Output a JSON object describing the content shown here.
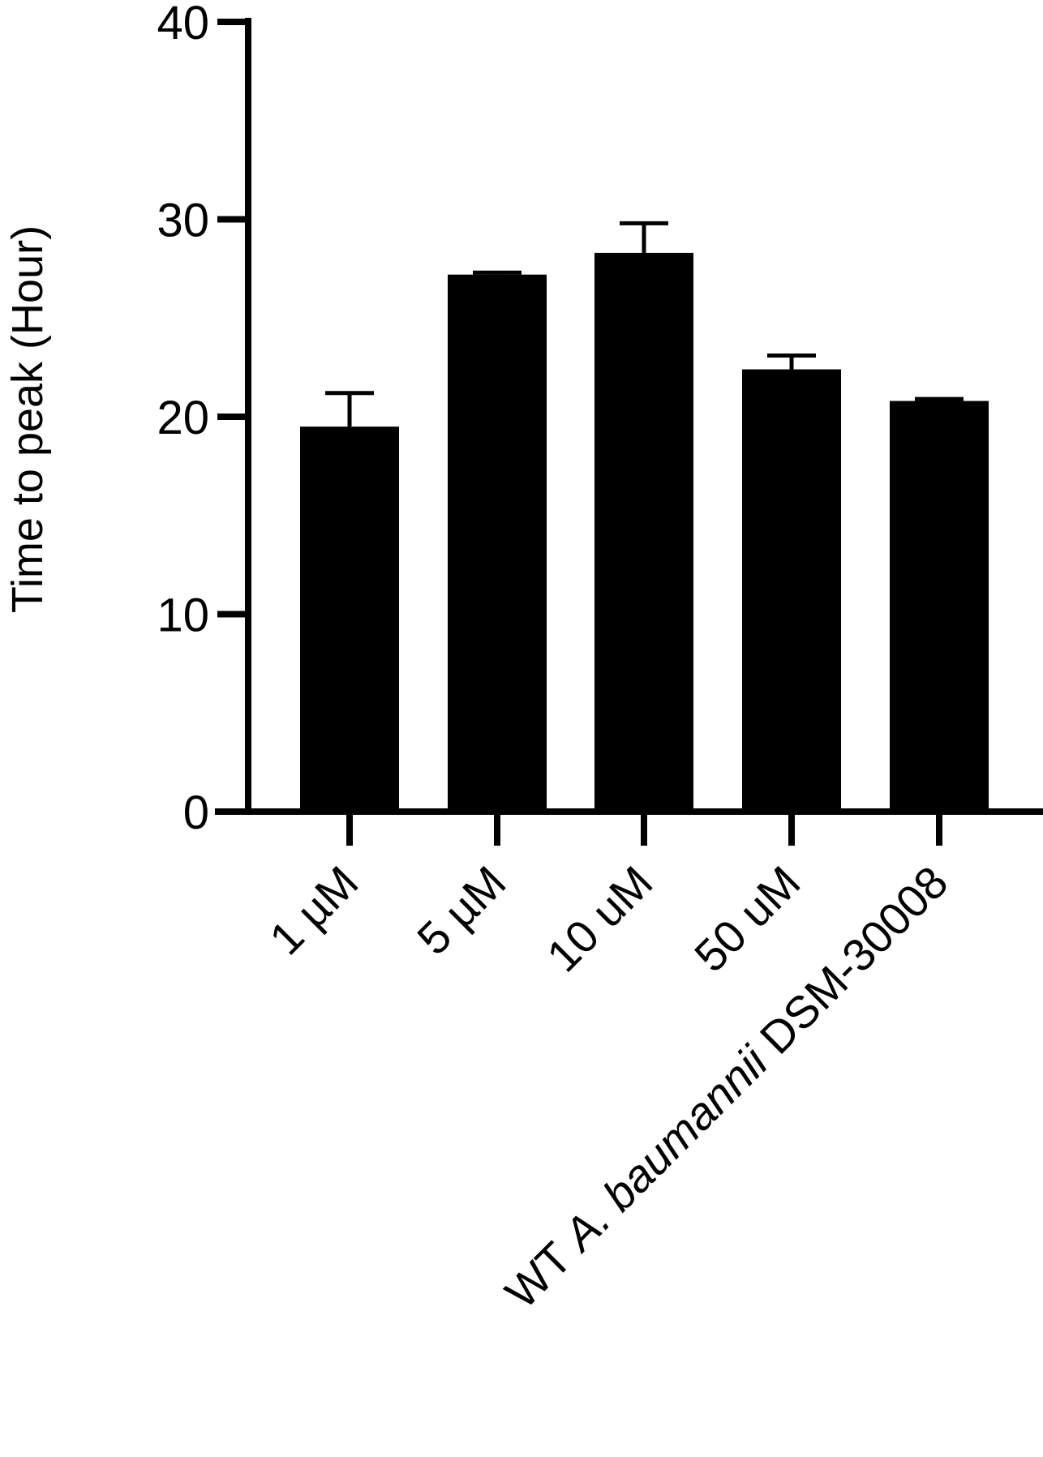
{
  "chart_data": {
    "type": "bar",
    "ylabel": "Time to peak (Hour)",
    "xlabel": "",
    "ylim": [
      0,
      40
    ],
    "yticks": [
      "0",
      "10",
      "20",
      "30",
      "40"
    ],
    "grid": false,
    "bar_color": "#000000",
    "categories": [
      {
        "label": "1 µM",
        "value": 19.5,
        "error": 1.7
      },
      {
        "label": "5 µM",
        "value": 27.2,
        "error": 0.1
      },
      {
        "label": "10 uM",
        "value": 28.3,
        "error": 1.5
      },
      {
        "label": "50 uM",
        "value": 22.4,
        "error": 0.7
      },
      {
        "label_parts": [
          "WT ",
          "A. baumannii",
          " DSM-30008"
        ],
        "value": 20.8,
        "error": 0.1
      }
    ]
  }
}
